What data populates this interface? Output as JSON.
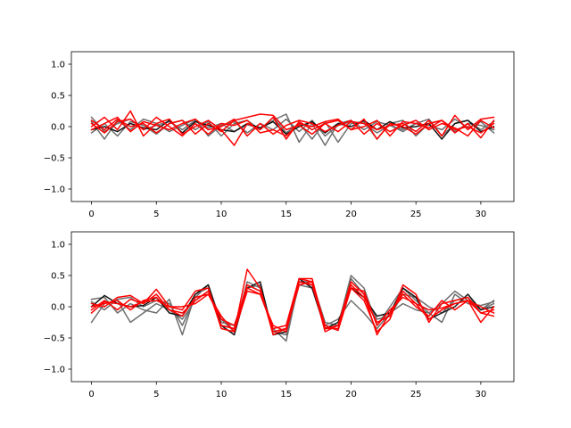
{
  "colors": {
    "gray_series": "#6e6e6e",
    "dark_series": "#151515",
    "red_series": "#ff0000",
    "axes": "#000000",
    "background": "#ffffff"
  },
  "chart_data": [
    {
      "type": "line",
      "title": "",
      "xlabel": "",
      "ylabel": "",
      "xlim": [
        -1.55,
        32.55
      ],
      "ylim": [
        -1.2,
        1.2
      ],
      "xticks": [
        0,
        5,
        10,
        15,
        20,
        25,
        30
      ],
      "yticks": [
        -1.0,
        -0.5,
        0.0,
        0.5,
        1.0
      ],
      "ytick_labels": [
        "−1.0",
        "−0.5",
        "0.0",
        "0.5",
        "1.0"
      ],
      "grid": false,
      "series": [
        {
          "color_key": "gray",
          "values": [
            0.15,
            -0.08,
            0.05,
            0.12,
            -0.05,
            0.02,
            0.08,
            -0.05,
            0.1,
            -0.02,
            0.05,
            -0.08,
            0.03,
            -0.02,
            0.1,
            0.2,
            -0.25,
            0.05,
            -0.3,
            0.05,
            0.1,
            -0.05,
            0.08,
            0.02,
            -0.05,
            0.05,
            0.12,
            -0.15,
            0.05,
            0.1,
            -0.05,
            0.08
          ]
        },
        {
          "color_key": "gray",
          "values": [
            -0.1,
            0.05,
            -0.15,
            0.08,
            0.02,
            -0.12,
            0.05,
            0.1,
            -0.05,
            0.08,
            -0.15,
            0.05,
            0.1,
            -0.05,
            0.15,
            -0.1,
            0.05,
            -0.2,
            0.08,
            -0.25,
            0.05,
            0.08,
            -0.2,
            0.05,
            0.1,
            -0.15,
            0.05,
            0.1,
            -0.08,
            0.05,
            0.02,
            -0.05
          ]
        },
        {
          "color_key": "gray",
          "values": [
            0.08,
            -0.2,
            0.1,
            -0.05,
            0.12,
            0.05,
            -0.08,
            0.02,
            0.12,
            -0.15,
            0.02,
            0.08,
            -0.1,
            0.05,
            -0.05,
            0.12,
            -0.08,
            0.1,
            -0.15,
            0.02,
            0.08,
            0.05,
            -0.1,
            0.02,
            -0.08,
            0.05,
            0.02,
            -0.05,
            0.12,
            -0.02,
            0.08,
            -0.1
          ]
        },
        {
          "color_key": "dark",
          "values": [
            -0.05,
            0.0,
            -0.08,
            0.05,
            -0.02,
            -0.05,
            0.1,
            -0.1,
            0.08,
            0.02,
            -0.05,
            -0.08,
            0.05,
            -0.02,
            0.08,
            -0.12,
            0.0,
            0.08,
            -0.1,
            0.05,
            0.0,
            0.1,
            -0.05,
            0.08,
            -0.02,
            0.0,
            0.05,
            -0.2,
            0.05,
            0.1,
            -0.08,
            0.0
          ]
        },
        {
          "color_key": "red",
          "values": [
            0.0,
            0.15,
            -0.05,
            0.25,
            -0.15,
            0.05,
            0.12,
            -0.12,
            0.0,
            0.1,
            -0.05,
            -0.3,
            0.05,
            -0.05,
            0.15,
            -0.2,
            0.08,
            -0.05,
            0.05,
            0.1,
            -0.05,
            0.12,
            -0.2,
            0.05,
            0.0,
            -0.12,
            0.05,
            0.1,
            -0.1,
            0.05,
            -0.18,
            0.1
          ]
        },
        {
          "color_key": "red",
          "values": [
            0.1,
            -0.05,
            0.12,
            0.0,
            0.05,
            -0.1,
            0.05,
            0.1,
            -0.12,
            0.05,
            -0.08,
            0.1,
            0.15,
            0.2,
            0.18,
            -0.05,
            0.02,
            -0.12,
            0.05,
            -0.08,
            0.08,
            0.05,
            -0.05,
            0.02,
            0.05,
            -0.08,
            0.1,
            -0.15,
            0.18,
            -0.05,
            0.12,
            0.15
          ]
        },
        {
          "color_key": "red",
          "values": [
            -0.05,
            0.05,
            0.15,
            -0.08,
            0.08,
            0.02,
            -0.05,
            0.05,
            0.12,
            -0.05,
            0.0,
            0.12,
            -0.15,
            0.05,
            -0.12,
            0.02,
            0.1,
            0.05,
            -0.08,
            0.02,
            0.1,
            -0.12,
            0.05,
            -0.08,
            0.02,
            0.1,
            -0.05,
            0.05,
            -0.02,
            -0.15,
            0.1,
            -0.02
          ]
        },
        {
          "color_key": "red",
          "values": [
            0.05,
            -0.1,
            0.08,
            0.12,
            -0.05,
            0.15,
            0.0,
            -0.15,
            0.05,
            -0.12,
            0.05,
            0.02,
            0.1,
            -0.1,
            -0.05,
            -0.15,
            0.05,
            0.0,
            0.08,
            0.12,
            -0.05,
            0.0,
            0.1,
            -0.15,
            0.08,
            0.05,
            -0.02,
            0.1,
            -0.05,
            0.0,
            -0.1,
            0.05
          ]
        }
      ]
    },
    {
      "type": "line",
      "title": "",
      "xlabel": "",
      "ylabel": "",
      "xlim": [
        -1.55,
        32.55
      ],
      "ylim": [
        -1.2,
        1.2
      ],
      "xticks": [
        0,
        5,
        10,
        15,
        20,
        25,
        30
      ],
      "yticks": [
        -1.0,
        -0.5,
        0.0,
        0.5,
        1.0
      ],
      "ytick_labels": [
        "−1.0",
        "−0.5",
        "0.0",
        "0.5",
        "1.0"
      ],
      "grid": false,
      "series": [
        {
          "color_key": "gray",
          "values": [
            0.12,
            0.15,
            -0.1,
            0.05,
            -0.05,
            -0.1,
            0.12,
            -0.45,
            0.2,
            0.3,
            -0.3,
            -0.35,
            0.35,
            0.25,
            -0.35,
            -0.55,
            0.4,
            0.35,
            -0.35,
            -0.3,
            0.5,
            0.3,
            -0.3,
            0.0,
            0.3,
            0.1,
            -0.1,
            -0.25,
            0.2,
            0.05,
            0.02,
            0.08
          ]
        },
        {
          "color_key": "gray",
          "values": [
            -0.25,
            0.05,
            0.1,
            -0.25,
            -0.1,
            0.05,
            -0.05,
            -0.2,
            0.1,
            0.25,
            -0.2,
            -0.4,
            0.4,
            0.3,
            -0.4,
            -0.45,
            0.35,
            0.3,
            -0.3,
            -0.2,
            0.1,
            -0.1,
            -0.35,
            -0.1,
            0.05,
            -0.05,
            -0.1,
            0.05,
            0.25,
            0.1,
            -0.05,
            0.05
          ]
        },
        {
          "color_key": "gray",
          "values": [
            0.08,
            -0.05,
            0.12,
            0.15,
            0.0,
            0.1,
            0.05,
            -0.3,
            0.15,
            0.35,
            -0.25,
            -0.3,
            0.3,
            0.35,
            -0.4,
            -0.35,
            0.4,
            0.4,
            -0.25,
            -0.3,
            0.45,
            0.2,
            -0.2,
            -0.15,
            0.2,
            0.15,
            0.0,
            -0.1,
            0.1,
            0.15,
            -0.05,
            0.1
          ]
        },
        {
          "color_key": "dark",
          "values": [
            0.0,
            0.18,
            0.05,
            0.0,
            0.02,
            0.15,
            -0.1,
            -0.15,
            0.2,
            0.35,
            -0.3,
            -0.45,
            0.3,
            0.4,
            -0.45,
            -0.4,
            0.45,
            0.3,
            -0.35,
            -0.25,
            0.3,
            0.15,
            -0.15,
            -0.1,
            0.3,
            0.15,
            -0.2,
            -0.1,
            0.0,
            0.2,
            -0.05,
            0.0
          ]
        },
        {
          "color_key": "red",
          "values": [
            0.05,
            0.0,
            0.15,
            0.18,
            0.05,
            0.28,
            0.0,
            -0.05,
            0.25,
            0.3,
            -0.35,
            -0.4,
            0.6,
            0.3,
            -0.45,
            -0.35,
            0.45,
            0.45,
            -0.35,
            -0.35,
            0.3,
            0.1,
            -0.4,
            -0.2,
            0.35,
            0.2,
            -0.25,
            0.05,
            0.1,
            0.15,
            -0.1,
            -0.15
          ]
        },
        {
          "color_key": "red",
          "values": [
            -0.05,
            0.1,
            -0.05,
            0.12,
            0.05,
            0.2,
            -0.05,
            -0.15,
            0.15,
            0.2,
            -0.2,
            -0.3,
            0.3,
            0.2,
            -0.3,
            -0.4,
            0.4,
            0.35,
            -0.35,
            -0.3,
            0.4,
            0.2,
            -0.45,
            -0.1,
            0.2,
            0.0,
            -0.15,
            0.1,
            -0.05,
            0.1,
            -0.25,
            0.0
          ]
        },
        {
          "color_key": "red",
          "values": [
            0.0,
            0.05,
            0.1,
            -0.05,
            0.1,
            0.15,
            -0.05,
            -0.1,
            0.1,
            0.25,
            -0.3,
            -0.35,
            0.35,
            0.25,
            -0.4,
            -0.35,
            0.35,
            0.4,
            -0.4,
            -0.3,
            0.35,
            0.15,
            -0.25,
            -0.15,
            0.25,
            0.05,
            -0.2,
            -0.05,
            0.05,
            0.1,
            -0.1,
            -0.05
          ]
        },
        {
          "color_key": "red",
          "values": [
            -0.1,
            0.08,
            0.05,
            0.0,
            0.08,
            0.1,
            0.0,
            0.0,
            0.05,
            0.2,
            -0.15,
            -0.4,
            0.25,
            0.2,
            -0.35,
            -0.3,
            0.45,
            0.4,
            -0.3,
            -0.38,
            0.3,
            0.25,
            -0.3,
            -0.05,
            0.15,
            0.05,
            -0.05,
            -0.02,
            0.05,
            0.1,
            0.0,
            -0.1
          ]
        }
      ]
    }
  ]
}
